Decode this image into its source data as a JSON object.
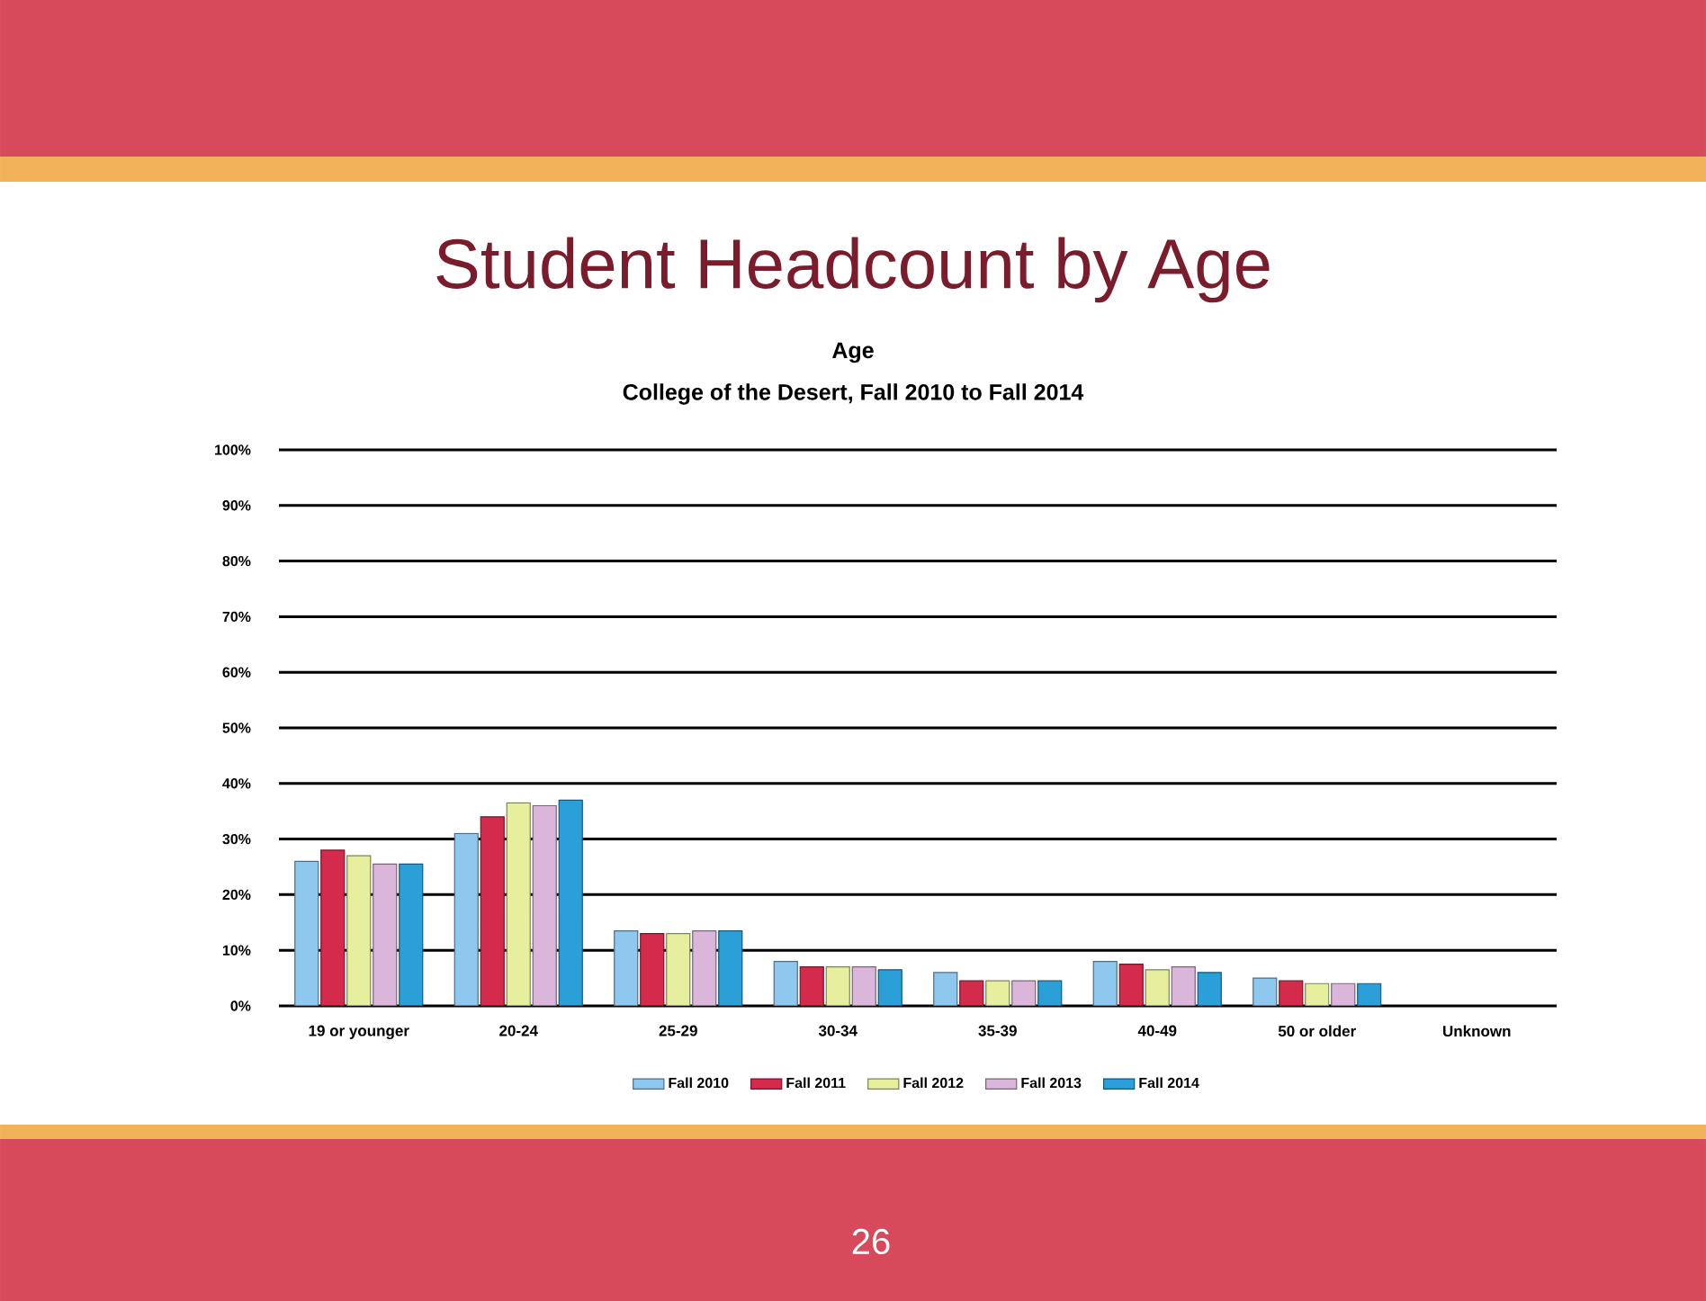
{
  "chart_data": {
    "type": "bar",
    "title": "Student Headcount by Age",
    "subtitle": "Age",
    "annotations": [
      "College of the Desert, Fall 2010 to Fall 2014",
      "26"
    ],
    "categories": [
      "19 or younger",
      "20-24",
      "25-29",
      "30-34",
      "35-39",
      "40-49",
      "50 or older",
      "Unknown"
    ],
    "series": [
      {
        "name": "Fall 2010",
        "color": "#8ec8ee",
        "values": [
          26,
          31,
          13.5,
          8,
          6,
          8,
          5,
          null
        ]
      },
      {
        "name": "Fall 2011",
        "color": "#d42a4c",
        "values": [
          28,
          34,
          13,
          7,
          4.5,
          7.5,
          4.5,
          null
        ]
      },
      {
        "name": "Fall 2012",
        "color": "#e6ef9e",
        "values": [
          27,
          36.5,
          13,
          7,
          4.5,
          6.5,
          4,
          null
        ]
      },
      {
        "name": "Fall 2013",
        "color": "#dab6da",
        "values": [
          25.5,
          36,
          13.5,
          7,
          4.5,
          7,
          4,
          null
        ]
      },
      {
        "name": "Fall 2014",
        "color": "#2a9fd8",
        "values": [
          25.5,
          37,
          13.5,
          6.5,
          4.5,
          6,
          4,
          null
        ]
      }
    ],
    "ylim": [
      0,
      100
    ],
    "yticks": [
      {
        "value": 0,
        "label": "0%"
      },
      {
        "value": 10,
        "label": "10%"
      },
      {
        "value": 20,
        "label": "20%"
      },
      {
        "value": 30,
        "label": "30%"
      },
      {
        "value": 40,
        "label": "40%"
      },
      {
        "value": 50,
        "label": "50%"
      },
      {
        "value": 60,
        "label": "60%"
      },
      {
        "value": 70,
        "label": "70%"
      },
      {
        "value": 80,
        "label": "80%"
      },
      {
        "value": 90,
        "label": "90%"
      },
      {
        "value": 100,
        "label": "100%"
      }
    ],
    "grid": "y",
    "legend": "bottom"
  }
}
